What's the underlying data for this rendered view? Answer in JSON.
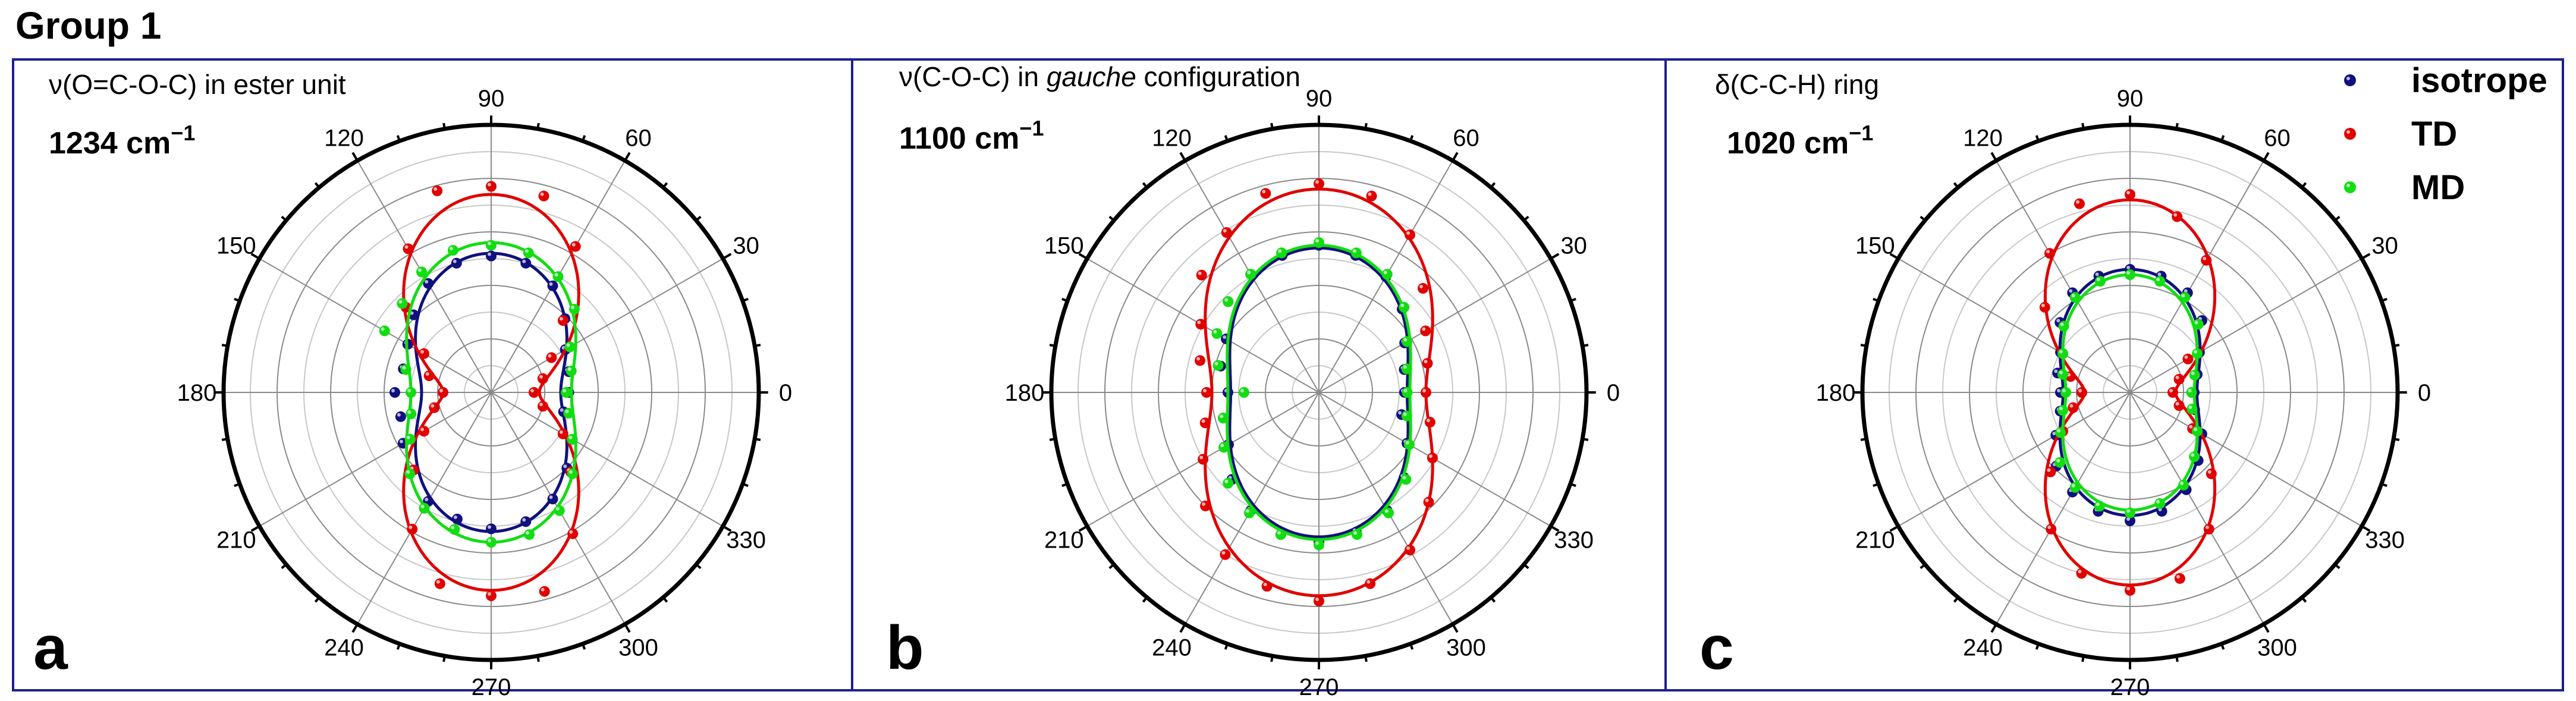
{
  "figure": {
    "title": "Group 1"
  },
  "colors": {
    "isotrope": "#10107e",
    "TD": "#e00000",
    "MD": "#11dd11",
    "frame": "#1f1f8c"
  },
  "legend": {
    "position": "top-right",
    "entries": [
      {
        "label": "isotrope",
        "color": "#10107e"
      },
      {
        "label": "TD",
        "color": "#e00000"
      },
      {
        "label": "MD",
        "color": "#11dd11"
      }
    ]
  },
  "chart_data": [
    {
      "type": "polar-scatter-line",
      "panel_label": "a",
      "title_parts": [
        {
          "t": "ν(O=C-O-C) in ester unit",
          "italic": false
        }
      ],
      "wavenumber": "1234 cm",
      "wavenumber_sup": "−1",
      "angle_ticks": [
        0,
        30,
        60,
        90,
        120,
        150,
        180,
        210,
        240,
        270,
        300,
        330
      ],
      "rlim": [
        0,
        10
      ],
      "grid": true,
      "series": [
        {
          "name": "isotrope",
          "curve": {
            "r0": 2.6,
            "r90": 5.2
          },
          "points": [
            [
              0,
              2.9
            ],
            [
              15,
              3.0
            ],
            [
              30,
              3.2
            ],
            [
              45,
              3.9
            ],
            [
              60,
              4.6
            ],
            [
              75,
              5.0
            ],
            [
              90,
              5.1
            ],
            [
              105,
              5.0
            ],
            [
              120,
              4.7
            ],
            [
              135,
              4.1
            ],
            [
              150,
              3.6
            ],
            [
              165,
              3.4
            ],
            [
              180,
              3.6
            ],
            [
              195,
              3.5
            ],
            [
              210,
              3.8
            ],
            [
              225,
              4.1
            ],
            [
              240,
              4.7
            ],
            [
              255,
              4.9
            ],
            [
              270,
              5.1
            ],
            [
              285,
              5.0
            ],
            [
              300,
              4.6
            ],
            [
              315,
              4.0
            ],
            [
              330,
              3.5
            ],
            [
              345,
              2.8
            ]
          ]
        },
        {
          "name": "TD",
          "curve": {
            "r0": 1.8,
            "r90": 7.4
          },
          "points": [
            [
              0,
              1.6
            ],
            [
              15,
              2.0
            ],
            [
              30,
              2.6
            ],
            [
              45,
              3.8
            ],
            [
              60,
              6.3
            ],
            [
              75,
              7.6
            ],
            [
              90,
              7.7
            ],
            [
              105,
              7.8
            ],
            [
              120,
              6.2
            ],
            [
              135,
              4.5
            ],
            [
              150,
              2.9
            ],
            [
              165,
              2.4
            ],
            [
              180,
              1.8
            ],
            [
              195,
              2.2
            ],
            [
              210,
              2.9
            ],
            [
              225,
              4.1
            ],
            [
              240,
              5.9
            ],
            [
              255,
              7.4
            ],
            [
              270,
              7.6
            ],
            [
              285,
              7.7
            ],
            [
              300,
              6.1
            ],
            [
              315,
              4.2
            ],
            [
              330,
              3.1
            ],
            [
              345,
              2.0
            ]
          ]
        },
        {
          "name": "MD",
          "curve": {
            "r0": 3.0,
            "r90": 5.6
          },
          "points": [
            [
              0,
              2.8
            ],
            [
              15,
              3.1
            ],
            [
              30,
              3.4
            ],
            [
              45,
              4.4
            ],
            [
              60,
              5.0
            ],
            [
              75,
              5.4
            ],
            [
              90,
              5.5
            ],
            [
              105,
              5.5
            ],
            [
              120,
              5.2
            ],
            [
              135,
              4.7
            ],
            [
              150,
              4.6
            ],
            [
              165,
              3.3
            ],
            [
              180,
              3.0
            ],
            [
              195,
              3.1
            ],
            [
              210,
              3.5
            ],
            [
              225,
              4.3
            ],
            [
              240,
              5.0
            ],
            [
              255,
              5.3
            ],
            [
              270,
              5.6
            ],
            [
              285,
              5.5
            ],
            [
              300,
              5.1
            ],
            [
              315,
              4.3
            ],
            [
              330,
              3.5
            ],
            [
              345,
              3.0
            ]
          ]
        }
      ]
    },
    {
      "type": "polar-scatter-line",
      "panel_label": "b",
      "title_parts": [
        {
          "t": "ν(C-O-C) in ",
          "italic": false
        },
        {
          "t": "gauche",
          "italic": true
        },
        {
          "t": " configuration",
          "italic": false
        }
      ],
      "wavenumber": "1100 cm",
      "wavenumber_sup": "−1",
      "angle_ticks": [
        0,
        30,
        60,
        90,
        120,
        150,
        180,
        210,
        240,
        270,
        300,
        330
      ],
      "rlim": [
        0,
        10
      ],
      "grid": true,
      "series": [
        {
          "name": "isotrope",
          "curve": {
            "r0": 3.3,
            "r90": 5.4
          },
          "points": [
            [
              0,
              3.2
            ],
            [
              15,
              3.3
            ],
            [
              30,
              3.7
            ],
            [
              45,
              4.4
            ],
            [
              60,
              5.0
            ],
            [
              75,
              5.3
            ],
            [
              90,
              5.5
            ],
            [
              105,
              5.3
            ],
            [
              120,
              5.1
            ],
            [
              135,
              4.8
            ],
            [
              150,
              4.0
            ],
            [
              165,
              3.8
            ],
            [
              180,
              3.4
            ],
            [
              195,
              3.7
            ],
            [
              210,
              3.9
            ],
            [
              225,
              4.6
            ],
            [
              240,
              5.1
            ],
            [
              255,
              5.5
            ],
            [
              270,
              5.6
            ],
            [
              285,
              5.4
            ],
            [
              300,
              5.1
            ],
            [
              315,
              4.5
            ],
            [
              330,
              3.8
            ],
            [
              345,
              3.2
            ]
          ]
        },
        {
          "name": "TD",
          "curve": {
            "r0": 4.0,
            "r90": 7.6
          },
          "points": [
            [
              0,
              4.0
            ],
            [
              15,
              4.2
            ],
            [
              30,
              4.6
            ],
            [
              45,
              5.5
            ],
            [
              60,
              6.8
            ],
            [
              75,
              7.6
            ],
            [
              90,
              7.8
            ],
            [
              105,
              7.7
            ],
            [
              120,
              6.9
            ],
            [
              135,
              6.2
            ],
            [
              150,
              5.1
            ],
            [
              165,
              4.6
            ],
            [
              180,
              4.2
            ],
            [
              195,
              4.4
            ],
            [
              210,
              5.0
            ],
            [
              225,
              6.0
            ],
            [
              240,
              7.0
            ],
            [
              255,
              7.5
            ],
            [
              270,
              7.8
            ],
            [
              285,
              7.4
            ],
            [
              300,
              6.8
            ],
            [
              315,
              5.8
            ],
            [
              330,
              4.9
            ],
            [
              345,
              4.3
            ]
          ]
        },
        {
          "name": "MD",
          "curve": {
            "r0": 3.4,
            "r90": 5.5
          },
          "points": [
            [
              0,
              3.3
            ],
            [
              15,
              3.4
            ],
            [
              30,
              3.8
            ],
            [
              45,
              4.5
            ],
            [
              60,
              5.1
            ],
            [
              75,
              5.4
            ],
            [
              90,
              5.6
            ],
            [
              105,
              5.4
            ],
            [
              120,
              5.1
            ],
            [
              135,
              4.8
            ],
            [
              150,
              4.4
            ],
            [
              165,
              3.9
            ],
            [
              180,
              2.8
            ],
            [
              195,
              3.7
            ],
            [
              210,
              4.1
            ],
            [
              225,
              4.8
            ],
            [
              240,
              5.2
            ],
            [
              255,
              5.5
            ],
            [
              270,
              5.7
            ],
            [
              285,
              5.5
            ],
            [
              300,
              5.2
            ],
            [
              315,
              4.6
            ],
            [
              330,
              3.9
            ],
            [
              345,
              3.4
            ]
          ]
        }
      ]
    },
    {
      "type": "polar-scatter-line",
      "panel_label": "c",
      "title_parts": [
        {
          "t": "δ(C-C-H) ring",
          "italic": false
        }
      ],
      "wavenumber": "1020 cm",
      "wavenumber_sup": "−1",
      "angle_ticks": [
        0,
        30,
        60,
        90,
        120,
        150,
        180,
        210,
        240,
        270,
        300,
        330
      ],
      "rlim": [
        0,
        10
      ],
      "grid": true,
      "series": [
        {
          "name": "isotrope",
          "curve": {
            "r0": 2.5,
            "r90": 4.6
          },
          "points": [
            [
              0,
              2.4
            ],
            [
              15,
              2.6
            ],
            [
              30,
              3.0
            ],
            [
              45,
              3.8
            ],
            [
              60,
              4.3
            ],
            [
              75,
              4.5
            ],
            [
              90,
              4.6
            ],
            [
              105,
              4.5
            ],
            [
              120,
              4.3
            ],
            [
              135,
              3.7
            ],
            [
              150,
              3.0
            ],
            [
              165,
              2.8
            ],
            [
              180,
              2.6
            ],
            [
              195,
              2.7
            ],
            [
              210,
              3.2
            ],
            [
              225,
              3.9
            ],
            [
              240,
              4.3
            ],
            [
              255,
              4.6
            ],
            [
              270,
              4.8
            ],
            [
              285,
              4.6
            ],
            [
              300,
              4.2
            ],
            [
              315,
              3.6
            ],
            [
              330,
              3.1
            ],
            [
              345,
              2.5
            ]
          ]
        },
        {
          "name": "TD",
          "curve": {
            "r0": 1.7,
            "r90": 7.2
          },
          "points": [
            [
              0,
              1.6
            ],
            [
              15,
              1.9
            ],
            [
              30,
              2.5
            ],
            [
              45,
              3.6
            ],
            [
              60,
              5.7
            ],
            [
              75,
              6.8
            ],
            [
              90,
              7.4
            ],
            [
              105,
              7.3
            ],
            [
              120,
              6.0
            ],
            [
              135,
              4.5
            ],
            [
              150,
              2.9
            ],
            [
              165,
              2.3
            ],
            [
              180,
              1.8
            ],
            [
              195,
              2.2
            ],
            [
              210,
              2.9
            ],
            [
              225,
              4.2
            ],
            [
              240,
              5.9
            ],
            [
              255,
              7.0
            ],
            [
              270,
              7.4
            ],
            [
              285,
              7.2
            ],
            [
              300,
              5.9
            ],
            [
              315,
              4.3
            ],
            [
              330,
              2.7
            ],
            [
              345,
              1.9
            ]
          ]
        },
        {
          "name": "MD",
          "curve": {
            "r0": 2.4,
            "r90": 4.4
          },
          "points": [
            [
              0,
              2.3
            ],
            [
              15,
              2.5
            ],
            [
              30,
              2.9
            ],
            [
              45,
              3.6
            ],
            [
              60,
              4.1
            ],
            [
              75,
              4.3
            ],
            [
              90,
              4.4
            ],
            [
              105,
              4.3
            ],
            [
              120,
              4.1
            ],
            [
              135,
              3.5
            ],
            [
              150,
              2.9
            ],
            [
              165,
              2.6
            ],
            [
              180,
              2.4
            ],
            [
              195,
              2.6
            ],
            [
              210,
              3.0
            ],
            [
              225,
              3.7
            ],
            [
              240,
              4.1
            ],
            [
              255,
              4.4
            ],
            [
              270,
              4.5
            ],
            [
              285,
              4.3
            ],
            [
              300,
              4.0
            ],
            [
              315,
              3.4
            ],
            [
              330,
              2.9
            ],
            [
              345,
              2.4
            ]
          ]
        }
      ]
    }
  ]
}
